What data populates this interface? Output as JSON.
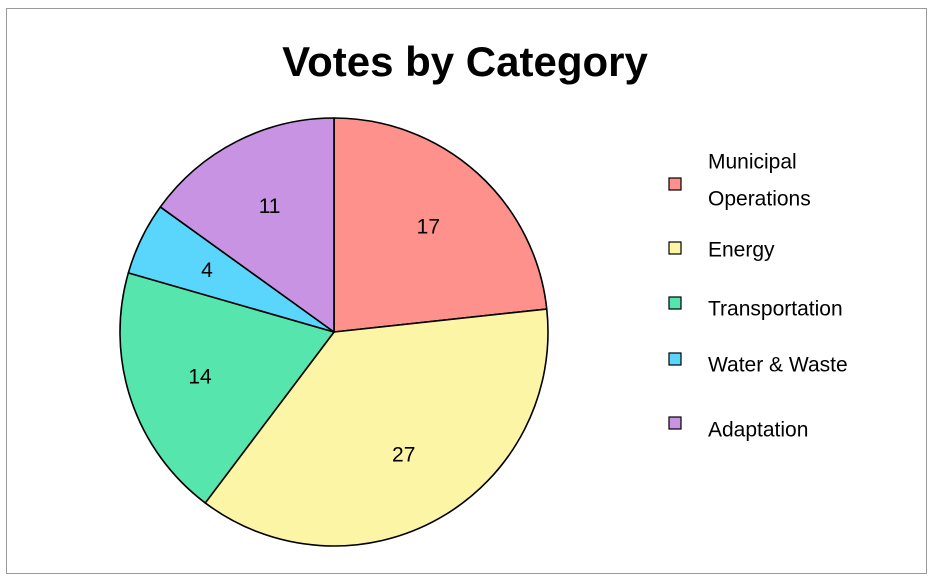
{
  "chart_data": {
    "type": "pie",
    "title": "Votes by Category",
    "categories": [
      "Municipal Operations",
      "Energy",
      "Transportation",
      "Water & Waste",
      "Adaptation"
    ],
    "values": [
      17,
      27,
      14,
      4,
      11
    ],
    "colors": [
      "#ff918c",
      "#fdf5a6",
      "#56e6ad",
      "#5ad6fc",
      "#c893e2"
    ],
    "legend": {
      "position": "right",
      "entries": [
        {
          "label_lines": [
            "Municipal",
            "Operations"
          ],
          "color": "#ff918c"
        },
        {
          "label_lines": [
            "Energy"
          ],
          "color": "#fdf5a6"
        },
        {
          "label_lines": [
            "Transportation"
          ],
          "color": "#56e6ad"
        },
        {
          "label_lines": [
            "Water & Waste"
          ],
          "color": "#5ad6fc"
        },
        {
          "label_lines": [
            "Adaptation"
          ],
          "color": "#c893e2"
        }
      ]
    },
    "data_labels": [
      "17",
      "27",
      "14",
      "4",
      "11"
    ],
    "start_angle": "12 o'clock",
    "direction": "clockwise",
    "slice_outline": "#000000"
  }
}
